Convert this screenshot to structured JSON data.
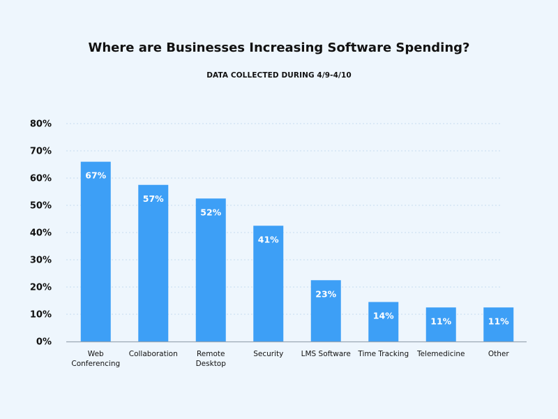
{
  "chart_data": {
    "type": "bar",
    "title": "Where are Businesses Increasing Software Spending?",
    "subtitle": "DATA COLLECTED DURING 4/9-4/10",
    "categories": [
      "Web Conferencing",
      "Collaboration",
      "Remote Desktop",
      "Security",
      "LMS Software",
      "Time Tracking",
      "Telemedicine",
      "Other"
    ],
    "category_lines": [
      [
        "Web",
        "Conferencing"
      ],
      [
        "Collaboration"
      ],
      [
        "Remote",
        "Desktop"
      ],
      [
        "Security"
      ],
      [
        "LMS Software"
      ],
      [
        "Time Tracking"
      ],
      [
        "Telemedicine"
      ],
      [
        "Other"
      ]
    ],
    "values": [
      67,
      57,
      52,
      41,
      23,
      14,
      11,
      11
    ],
    "data_labels": [
      "67%",
      "57%",
      "52%",
      "41%",
      "23%",
      "14%",
      "11%",
      "11%"
    ],
    "bar_heights": [
      66,
      57.5,
      52.5,
      42.5,
      22.5,
      14.5,
      12.5,
      12.5
    ],
    "ylim": [
      0,
      80
    ],
    "yticks": [
      0,
      10,
      20,
      30,
      40,
      50,
      60,
      70,
      80
    ],
    "ytick_labels": [
      "0%",
      "10%",
      "20%",
      "30%",
      "40%",
      "50%",
      "60%",
      "70%",
      "80%"
    ],
    "xlabel": "",
    "ylabel": "",
    "grid": true,
    "legend": "none",
    "colors": {
      "bar": "#3d9ff6",
      "grid": "#c7dcee",
      "axis": "#9aa7b3",
      "background": "#eef6fd"
    }
  }
}
